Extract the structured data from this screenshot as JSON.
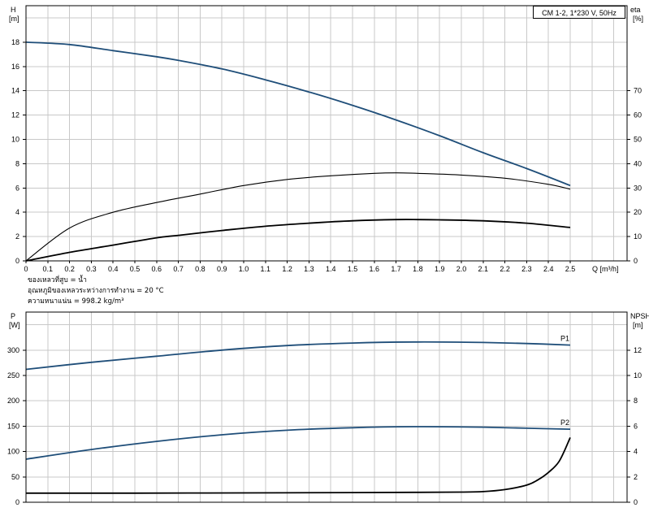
{
  "model_label": "CM 1-2, 1*230 V, 50Hz",
  "notes": [
    "ของเหลวที่สูบ = น้ำ",
    "อุณหภูมิของเหลวระหว่างการทำงาน = 20 °C",
    "ความหนาแน่น = 998.2 kg/m³"
  ],
  "colors": {
    "curve": "#1f4e79",
    "curve_black": "#000000",
    "grid": "#c8c8c8"
  },
  "chart_data": [
    {
      "type": "line",
      "xlabel": "Q [m³/h]",
      "xlim": [
        0,
        2.5
      ],
      "xticks": [
        "0",
        "0.1",
        "0.2",
        "0.3",
        "0.4",
        "0.5",
        "0.6",
        "0.7",
        "0.8",
        "0.9",
        "1.0",
        "1.1",
        "1.2",
        "1.3",
        "1.4",
        "1.5",
        "1.6",
        "1.7",
        "1.8",
        "1.9",
        "2.0",
        "2.1",
        "2.2",
        "2.3",
        "2.4",
        "2.5"
      ],
      "ylabel_left": [
        "H",
        "[m]"
      ],
      "ylim_left": [
        0,
        21
      ],
      "yticks_left": [
        0,
        2,
        4,
        6,
        8,
        10,
        12,
        14,
        16,
        18
      ],
      "ylabel_right": [
        "eta",
        "[%]"
      ],
      "ylim_right": [
        0,
        105
      ],
      "yticks_right": [
        0,
        10,
        20,
        30,
        40,
        50,
        60,
        70
      ],
      "grid": true,
      "series": [
        {
          "name": "",
          "axis": "left",
          "color": "#1f4e79",
          "x": [
            0,
            0.2,
            0.4,
            0.6,
            0.7,
            0.9,
            1.1,
            1.3,
            1.5,
            1.7,
            1.9,
            2.1,
            2.3,
            2.5
          ],
          "y": [
            18.0,
            17.8,
            17.3,
            16.8,
            16.5,
            15.8,
            14.9,
            13.9,
            12.8,
            11.6,
            10.3,
            8.9,
            7.6,
            6.2
          ]
        },
        {
          "name": "",
          "axis": "right",
          "color": "#000000",
          "x": [
            0,
            0.2,
            0.4,
            0.6,
            0.8,
            1.0,
            1.2,
            1.4,
            1.6,
            1.7,
            1.8,
            2.0,
            2.2,
            2.4,
            2.5
          ],
          "y": [
            0,
            13.5,
            20,
            24,
            27.5,
            31,
            33.5,
            35,
            36,
            36.2,
            36,
            35.3,
            34,
            31.5,
            29.5
          ]
        },
        {
          "name": "",
          "axis": "left",
          "color": "#000000",
          "x": [
            0,
            0.2,
            0.4,
            0.6,
            0.7,
            0.9,
            1.1,
            1.3,
            1.5,
            1.7,
            1.8,
            1.9,
            2.1,
            2.3,
            2.5
          ],
          "y": [
            0,
            0.7,
            1.3,
            1.9,
            2.1,
            2.5,
            2.85,
            3.1,
            3.3,
            3.4,
            3.4,
            3.38,
            3.3,
            3.1,
            2.75
          ]
        }
      ]
    },
    {
      "type": "line",
      "xlabel": "",
      "xlim": [
        0,
        2.5
      ],
      "ylabel_left": [
        "P",
        "[W]"
      ],
      "ylim_left": [
        0,
        375
      ],
      "yticks_left": [
        0,
        50,
        100,
        150,
        200,
        250,
        300
      ],
      "ylabel_right": [
        "NPSH",
        "[m]"
      ],
      "ylim_right": [
        0,
        15
      ],
      "yticks_right": [
        0,
        2,
        4,
        6,
        8,
        10,
        12
      ],
      "grid": true,
      "series": [
        {
          "name": "P1",
          "axis": "left",
          "color": "#1f4e79",
          "x": [
            0,
            0.3,
            0.6,
            0.9,
            1.2,
            1.5,
            1.8,
            2.1,
            2.3,
            2.5
          ],
          "y": [
            262,
            276,
            288,
            300,
            309,
            314,
            316,
            315,
            313,
            310
          ]
        },
        {
          "name": "P2",
          "axis": "left",
          "color": "#1f4e79",
          "x": [
            0,
            0.3,
            0.6,
            0.9,
            1.2,
            1.5,
            1.8,
            2.1,
            2.3,
            2.5
          ],
          "y": [
            85,
            104,
            120,
            133,
            142,
            147,
            149,
            148,
            146,
            144
          ]
        },
        {
          "name": "",
          "axis": "right",
          "color": "#000000",
          "x": [
            0,
            0.5,
            1.0,
            1.5,
            1.8,
            2.0,
            2.1,
            2.2,
            2.3,
            2.35,
            2.4,
            2.45,
            2.5
          ],
          "y": [
            0.72,
            0.72,
            0.74,
            0.76,
            0.78,
            0.8,
            0.84,
            1.0,
            1.35,
            1.75,
            2.35,
            3.25,
            5.1
          ]
        }
      ]
    }
  ]
}
